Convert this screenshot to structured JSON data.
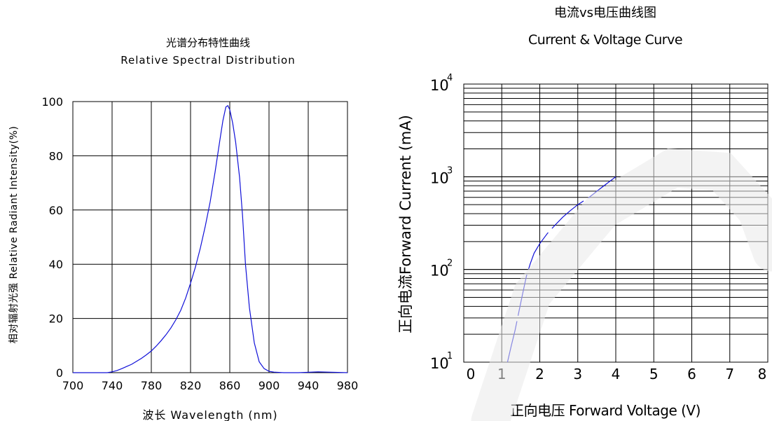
{
  "chart_data": [
    {
      "type": "line",
      "title": "光谱分布特性曲线",
      "subtitle": "Relative Spectral Distribution",
      "xlabel": "波长  Wavelength (nm)",
      "ylabel": "相对辐射光强  Relative  Radiant  Intensity(%)",
      "xlim": [
        700,
        980
      ],
      "ylim": [
        0,
        100
      ],
      "xticks": [
        700,
        740,
        780,
        820,
        860,
        900,
        940,
        980
      ],
      "yticks": [
        0,
        20,
        40,
        60,
        80,
        100
      ],
      "grid": true,
      "line_color": "#1010d8",
      "series": [
        {
          "x": [
            700,
            735,
            740,
            745,
            750,
            755,
            760,
            765,
            770,
            775,
            780,
            785,
            790,
            795,
            800,
            805,
            810,
            815,
            820,
            825,
            830,
            835,
            840,
            845,
            850,
            853,
            856,
            858,
            860,
            863,
            866,
            870,
            873,
            876,
            880,
            885,
            890,
            895,
            900,
            905,
            915,
            930,
            950,
            980
          ],
          "y": [
            0,
            0,
            0.3,
            0.8,
            1.5,
            2.3,
            3.1,
            4.2,
            5.3,
            6.6,
            8,
            9.8,
            11.8,
            14,
            16.5,
            19.5,
            23,
            27.5,
            33,
            39,
            46,
            54,
            63,
            74,
            86,
            93,
            98,
            98.5,
            97,
            92,
            85,
            72,
            58,
            40,
            24,
            11,
            4,
            1.5,
            0.5,
            0.2,
            0,
            0,
            0.3,
            0
          ]
        }
      ]
    },
    {
      "type": "line",
      "title": "电流vs电压曲线图",
      "subtitle": "Current & Voltage Curve",
      "xlabel": "正向电压 Forward Voltage (V)",
      "ylabel": "正向电流Forward Current (mA)",
      "xlim": [
        0,
        8
      ],
      "ylim": [
        10,
        10000
      ],
      "yscale": "log",
      "xticks": [
        0,
        1,
        2,
        3,
        4,
        5,
        6,
        7,
        8
      ],
      "ytick_labels": [
        {
          "base": "10",
          "exp": "1"
        },
        {
          "base": "10",
          "exp": "2"
        },
        {
          "base": "10",
          "exp": "3"
        },
        {
          "base": "10",
          "exp": "4"
        }
      ],
      "grid": true,
      "line_color": "#1010d8",
      "line_style": "dashed",
      "series": [
        {
          "x": [
            1.15,
            1.25,
            1.35,
            1.45,
            1.55,
            1.65,
            1.75,
            1.85,
            2.0,
            2.2,
            2.4,
            2.6,
            2.8,
            3.0,
            3.3,
            3.6,
            4.0
          ],
          "y": [
            10,
            15,
            22,
            35,
            55,
            85,
            115,
            150,
            190,
            245,
            300,
            365,
            430,
            500,
            600,
            750,
            1000
          ]
        }
      ]
    }
  ]
}
